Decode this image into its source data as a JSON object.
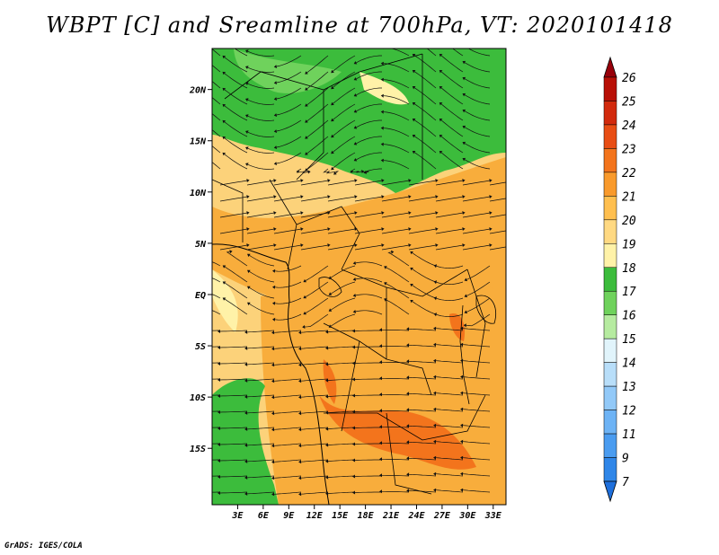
{
  "title": "WBPT [C] and Sreamline at 700hPa, VT: 2020101418",
  "credit": "GrADS: IGES/COLA",
  "map": {
    "lat_labels": [
      "20N",
      "15N",
      "10N",
      "5N",
      "EQ",
      "5S",
      "10S",
      "15S"
    ],
    "lon_labels": [
      "3E",
      "6E",
      "9E",
      "12E",
      "15E",
      "18E",
      "21E",
      "24E",
      "27E",
      "30E",
      "33E"
    ],
    "lat_range": [
      -20.5,
      24
    ],
    "lon_range": [
      0,
      34.5
    ]
  },
  "colorbar": {
    "levels": [
      "7",
      "9",
      "11",
      "12",
      "13",
      "14",
      "15",
      "16",
      "17",
      "18",
      "19",
      "20",
      "21",
      "22",
      "23",
      "24",
      "25",
      "26"
    ],
    "colors": [
      "#1e6fdc",
      "#2f86e8",
      "#4a9cf0",
      "#6db3f5",
      "#92c9f8",
      "#b8def9",
      "#e1f4fb",
      "#b6eba0",
      "#6fd25c",
      "#3cbc3c",
      "#fff2a8",
      "#ffd982",
      "#ffbf4f",
      "#f99a2c",
      "#f3741c",
      "#e84d14",
      "#d22a0d",
      "#b81006",
      "#98000a"
    ]
  },
  "colors": {
    "land_base": "#fcd27a",
    "green": "#3cbc3c",
    "light_green": "#6fd25c",
    "orange": "#f8ad3c",
    "dark_orange": "#f3741c",
    "pale": "#fff2a8"
  }
}
